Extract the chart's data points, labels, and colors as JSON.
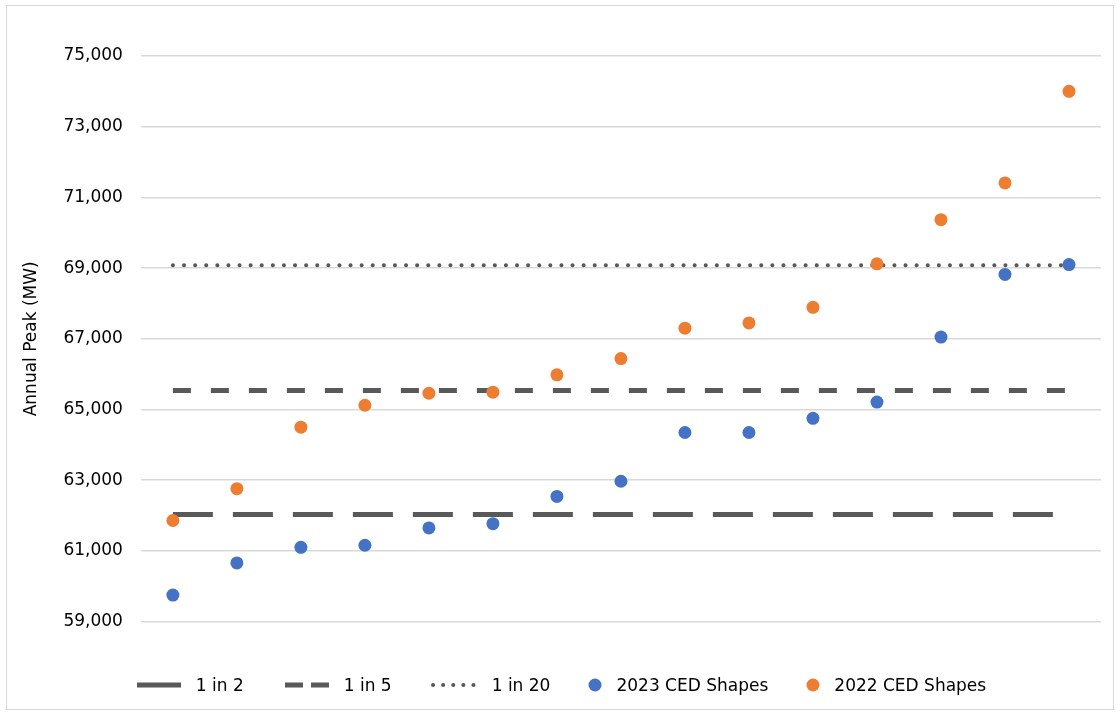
{
  "chart_data": {
    "type": "scatter",
    "ylabel": "Annual Peak (MW)",
    "categories": [
      null,
      null,
      null,
      null,
      null,
      null,
      null,
      null,
      null,
      null,
      null,
      null,
      null,
      null,
      null
    ],
    "series": [
      {
        "name": "2023 CED Shapes",
        "color": "#4472c4",
        "values": [
          59750,
          60660,
          61100,
          61160,
          61650,
          61770,
          62540,
          62970,
          64350,
          64350,
          64750,
          65210,
          67050,
          68820,
          69100
        ]
      },
      {
        "name": "2022 CED Shapes",
        "color": "#ed7d31",
        "values": [
          61860,
          62760,
          64500,
          65120,
          65460,
          65490,
          65980,
          66440,
          67300,
          67450,
          67890,
          69120,
          70370,
          71410,
          74000
        ]
      }
    ],
    "ref_lines": [
      {
        "axis": "y",
        "value": 62030,
        "label": "1 in 2",
        "color": "#595959",
        "line_style": "dashed"
      },
      {
        "axis": "y",
        "value": 65540,
        "label": "1 in 5",
        "color": "#595959",
        "line_style": "dashed"
      },
      {
        "axis": "y",
        "value": 69080,
        "label": "1 in 20",
        "color": "#595959",
        "line_style": "dotted"
      }
    ],
    "ylim": [
      59000,
      75000
    ],
    "yticks": [
      {
        "value": 59000,
        "label": "59,000"
      },
      {
        "value": 61000,
        "label": "61,000"
      },
      {
        "value": 63000,
        "label": "63,000"
      },
      {
        "value": 65000,
        "label": "65,000"
      },
      {
        "value": 67000,
        "label": "67,000"
      },
      {
        "value": 69000,
        "label": "69,000"
      },
      {
        "value": 71000,
        "label": "71,000"
      },
      {
        "value": 73000,
        "label": "73,000"
      },
      {
        "value": 75000,
        "label": "75,000"
      }
    ],
    "grid": "y",
    "legend": "bottom",
    "marker": "circle"
  }
}
